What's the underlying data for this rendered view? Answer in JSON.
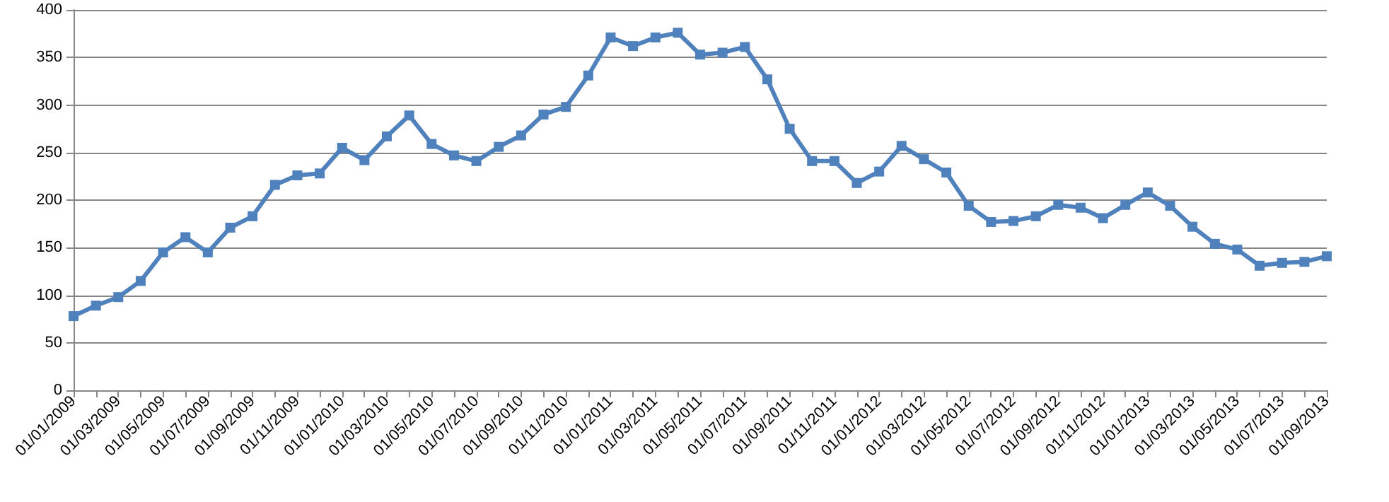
{
  "chart_data": {
    "type": "line",
    "categories": [
      "01/01/2009",
      null,
      "01/03/2009",
      null,
      "01/05/2009",
      null,
      "01/07/2009",
      null,
      "01/09/2009",
      null,
      "01/11/2009",
      null,
      "01/01/2010",
      null,
      "01/03/2010",
      null,
      "01/05/2010",
      null,
      "01/07/2010",
      null,
      "01/09/2010",
      null,
      "01/11/2010",
      null,
      "01/01/2011",
      null,
      "01/03/2011",
      null,
      "01/05/2011",
      null,
      "01/07/2011",
      null,
      "01/09/2011",
      null,
      "01/11/2011",
      null,
      "01/01/2012",
      null,
      "01/03/2012",
      null,
      "01/05/2012",
      null,
      "01/07/2012",
      null,
      "01/09/2012",
      null,
      "01/11/2012",
      null,
      "01/01/2013",
      null,
      "01/03/2013",
      null,
      "01/05/2013",
      null,
      "01/07/2013",
      null,
      "01/09/2013"
    ],
    "series": [
      {
        "color": "#4f81bd",
        "values": [
          78,
          89,
          98,
          115,
          145,
          161,
          145,
          171,
          183,
          216,
          226,
          228,
          255,
          242,
          267,
          289,
          259,
          247,
          241,
          256,
          268,
          290,
          298,
          331,
          371,
          362,
          371,
          376,
          353,
          355,
          361,
          327,
          275,
          241,
          241,
          218,
          230,
          257,
          243,
          229,
          194,
          177,
          178,
          183,
          195,
          192,
          181,
          195,
          208,
          194,
          172,
          154,
          148,
          131,
          134,
          135,
          141
        ]
      }
    ],
    "ylim": [
      0,
      400
    ],
    "yticks": [
      0,
      50,
      100,
      150,
      200,
      250,
      300,
      350,
      400
    ],
    "grid": "y",
    "marker": "square",
    "line_style": "solid"
  }
}
